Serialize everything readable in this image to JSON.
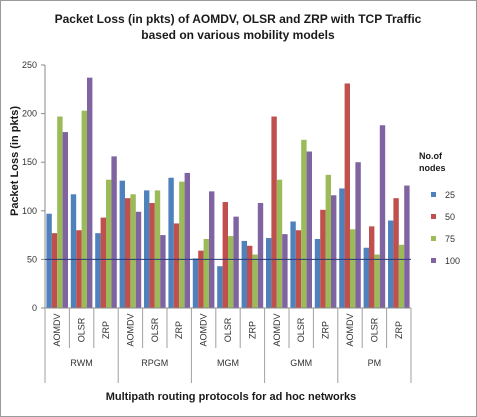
{
  "chart_data": {
    "type": "bar",
    "title": "Packet Loss (in pkts) of AOMDV, OLSR and ZRP with TCP Traffic",
    "subtitle": "based on various mobility models",
    "xlabel": "Multipath routing protocols for ad hoc networks",
    "ylabel": "Packet Loss (in pkts)",
    "ylim": [
      0,
      250
    ],
    "yticks": [
      0,
      50,
      100,
      150,
      200,
      250
    ],
    "grid": false,
    "legend_title": "No.of nodes",
    "legend_position": "right",
    "reference_line": 50,
    "groups": [
      "RWM",
      "RPGM",
      "MGM",
      "GMM",
      "PM"
    ],
    "protocols": [
      "AOMDV",
      "OLSR",
      "ZRP"
    ],
    "categories": [
      "AOMDV",
      "OLSR",
      "ZRP",
      "AOMDV",
      "OLSR",
      "ZRP",
      "AOMDV",
      "OLSR",
      "ZRP",
      "AOMDV",
      "OLSR",
      "ZRP",
      "AOMDV",
      "OLSR",
      "ZRP"
    ],
    "series": [
      {
        "name": "25",
        "color": "#4F81BD",
        "values": [
          97,
          117,
          77,
          131,
          121,
          134,
          51,
          43,
          69,
          72,
          89,
          71,
          123,
          62,
          90
        ]
      },
      {
        "name": "50",
        "color": "#C0504D",
        "values": [
          77,
          80,
          93,
          113,
          108,
          87,
          59,
          109,
          64,
          197,
          80,
          101,
          231,
          84,
          113
        ]
      },
      {
        "name": "75",
        "color": "#9BBB59",
        "values": [
          197,
          203,
          132,
          117,
          121,
          130,
          71,
          74,
          55,
          132,
          173,
          137,
          81,
          55,
          65
        ]
      },
      {
        "name": "100",
        "color": "#8064A2",
        "values": [
          181,
          237,
          156,
          99,
          75,
          139,
          120,
          94,
          108,
          76,
          161,
          116,
          150,
          188,
          126
        ]
      }
    ]
  }
}
